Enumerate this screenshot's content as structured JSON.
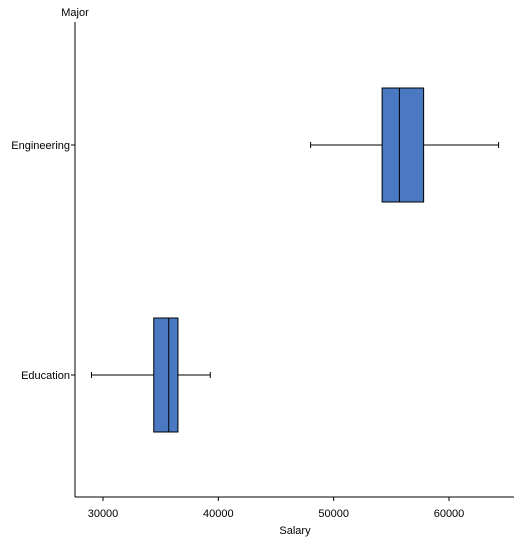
{
  "chart_data": {
    "type": "boxplot",
    "orientation": "horizontal",
    "xlabel": "Salary",
    "ylabel": "Major",
    "xlim": [
      27500,
      65500
    ],
    "x_ticks": [
      30000,
      40000,
      50000,
      60000
    ],
    "x_tick_labels": [
      "30000",
      "40000",
      "50000",
      "60000"
    ],
    "categories": [
      "Engineering",
      "Education"
    ],
    "boxes": [
      {
        "category": "Engineering",
        "min": 48000,
        "q1": 54200,
        "median": 55700,
        "q3": 57800,
        "max": 64300
      },
      {
        "category": "Education",
        "min": 29000,
        "q1": 34400,
        "median": 35700,
        "q3": 36500,
        "max": 39300
      }
    ],
    "grid": false,
    "colors": {
      "box_fill": "#4a78c2",
      "box_stroke": "#000000",
      "axis": "#000000"
    }
  }
}
